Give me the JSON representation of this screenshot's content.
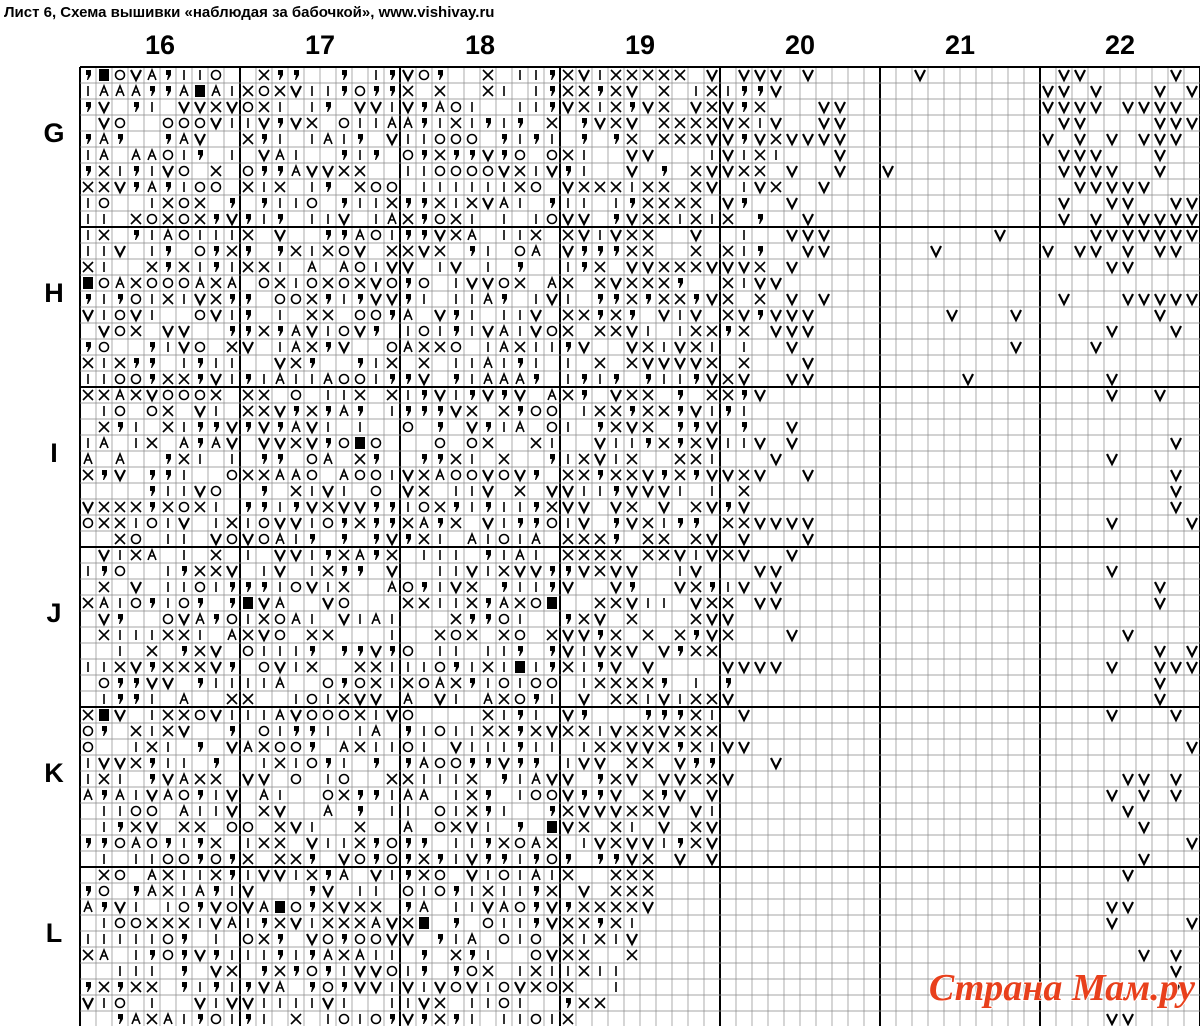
{
  "header": {
    "title": "Лист 6, Схема вышивки «наблюдая за бабочкой», www.vishivay.ru"
  },
  "columns": [
    "16",
    "17",
    "18",
    "19",
    "20",
    "21",
    "22"
  ],
  "rows": [
    "G",
    "H",
    "I",
    "J",
    "K",
    "L"
  ],
  "watermark": "Страна Мам.ру"
}
